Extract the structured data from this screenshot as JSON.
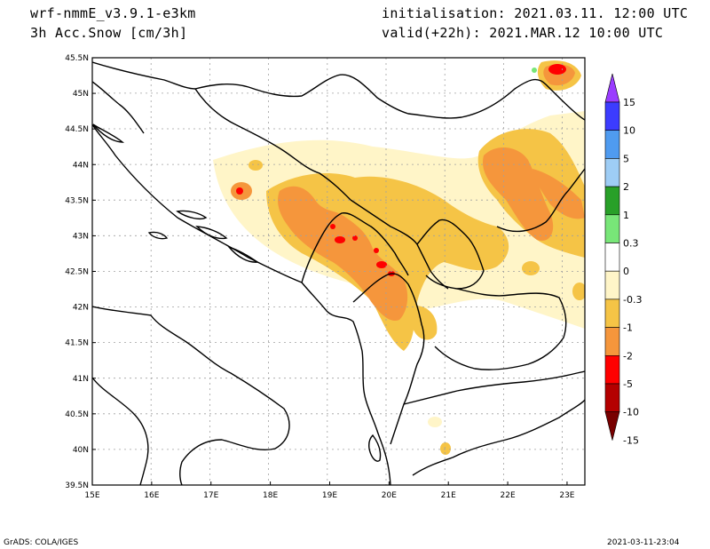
{
  "header": {
    "model": "wrf-nmmE_v3.9.1-e3km",
    "field": "3h Acc.Snow [cm/3h]",
    "init": "initialisation: 2021.03.11.  12:00 UTC",
    "valid": "valid(+22h): 2021.MAR.12 10:00 UTC"
  },
  "axes": {
    "lon_ticks": [
      "15E",
      "16E",
      "17E",
      "18E",
      "19E",
      "20E",
      "21E",
      "22E",
      "23E"
    ],
    "lat_ticks": [
      "39.5N",
      "40N",
      "40.5N",
      "41N",
      "41.5N",
      "42N",
      "42.5N",
      "43N",
      "43.5N",
      "44N",
      "44.5N",
      "45N",
      "45.5N"
    ],
    "lon_range": [
      15.0,
      23.3
    ],
    "lat_range": [
      39.5,
      45.5
    ]
  },
  "colorbar": {
    "labels": [
      "15",
      "10",
      "5",
      "2",
      "1",
      "0.3",
      "0",
      "-0.3",
      "-1",
      "-2",
      "-5",
      "-10",
      "-15"
    ],
    "colors_top_down": [
      "#9a3cff",
      "#3c3cff",
      "#4f9bf0",
      "#9ecdf5",
      "#28a028",
      "#78e678",
      "#ffffff",
      "#fff5c8",
      "#f5c446",
      "#f5963c",
      "#ff0000",
      "#b40000",
      "#780000"
    ]
  },
  "footer": {
    "left": "GrADS: COLA/IGES",
    "right": "2021-03-11-23:04"
  }
}
